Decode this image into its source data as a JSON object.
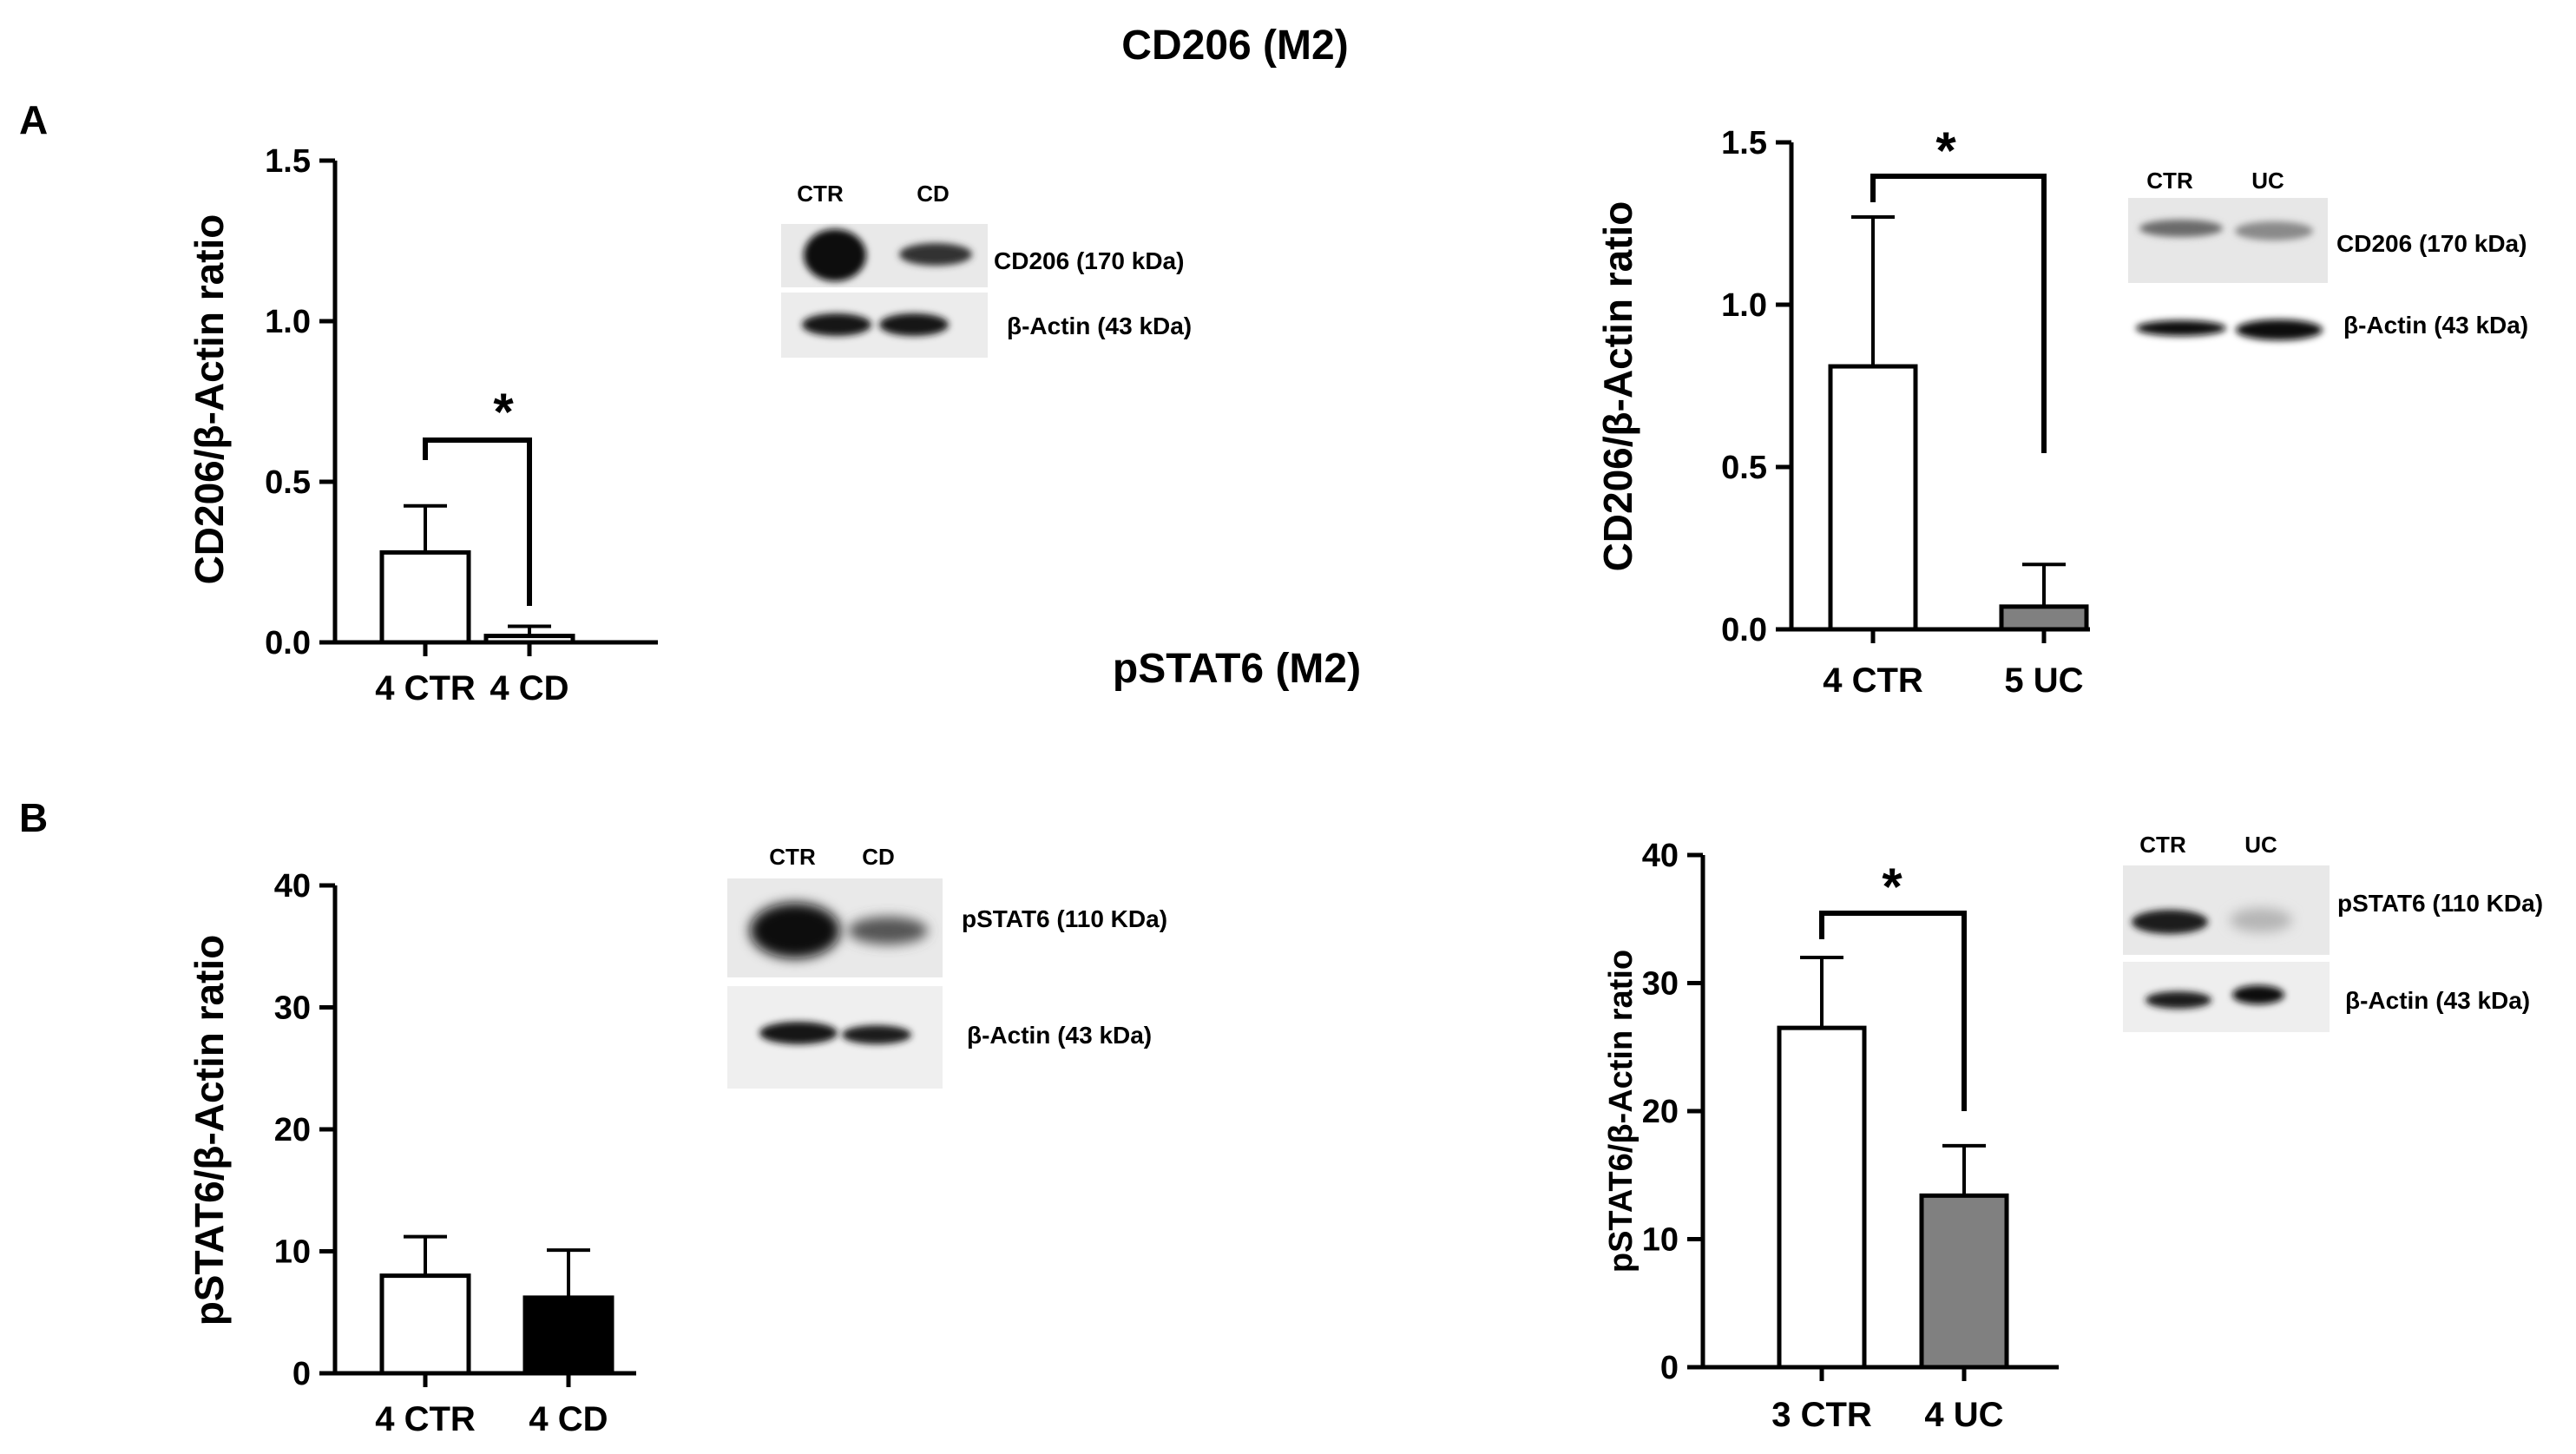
{
  "figure": {
    "title_top": "CD206 (M2)",
    "title_mid": "pSTAT6 (M2)",
    "panel_a": "A",
    "panel_b": "B"
  },
  "chart_data": [
    {
      "type": "bar",
      "id": "a-left",
      "categories": [
        "4 CTR",
        "4 CD"
      ],
      "values": [
        0.28,
        0.02
      ],
      "errors": [
        0.145,
        0.03
      ],
      "colors": [
        "#ffffff",
        "#ffffff"
      ],
      "ylabel": "CD206/β-Actin ratio",
      "ylim": [
        0,
        1.5
      ],
      "yticks": [
        0,
        0.5,
        1.0,
        1.5
      ],
      "ytick_labels": [
        "0.0",
        "0.5",
        "1.0",
        "1.5"
      ],
      "significance": "*"
    },
    {
      "type": "bar",
      "id": "a-right",
      "categories": [
        "4 CTR",
        "5 UC"
      ],
      "values": [
        0.81,
        0.07
      ],
      "errors": [
        0.46,
        0.13
      ],
      "colors": [
        "#ffffff",
        "#808080"
      ],
      "ylabel": "CD206/β-Actin ratio",
      "ylim": [
        0,
        1.5
      ],
      "yticks": [
        0,
        0.5,
        1.0,
        1.5
      ],
      "ytick_labels": [
        "0.0",
        "0.5",
        "1.0",
        "1.5"
      ],
      "significance": "*"
    },
    {
      "type": "bar",
      "id": "b-left",
      "categories": [
        "4 CTR",
        "4 CD"
      ],
      "values": [
        8.0,
        6.2
      ],
      "errors": [
        3.2,
        3.9
      ],
      "colors": [
        "#ffffff",
        "#000000"
      ],
      "ylabel": "pSTAT6/β-Actin ratio",
      "ylim": [
        0,
        40
      ],
      "yticks": [
        0,
        10,
        20,
        30,
        40
      ],
      "ytick_labels": [
        "0",
        "10",
        "20",
        "30",
        "40"
      ],
      "significance": ""
    },
    {
      "type": "bar",
      "id": "b-right",
      "categories": [
        "3 CTR",
        "4 UC"
      ],
      "values": [
        26.5,
        13.4
      ],
      "errors": [
        5.5,
        3.9
      ],
      "colors": [
        "#ffffff",
        "#808080"
      ],
      "ylabel": "pSTAT6/β-Actin ratio",
      "ylim": [
        0,
        40
      ],
      "yticks": [
        0,
        10,
        20,
        30,
        40
      ],
      "ytick_labels": [
        "0",
        "10",
        "20",
        "30",
        "40"
      ],
      "significance": "*"
    }
  ],
  "blots": [
    {
      "id": "a-left",
      "lanes": [
        "CTR",
        "CD"
      ],
      "bands": [
        "CD206 (170 kDa)",
        "β-Actin (43 kDa)"
      ]
    },
    {
      "id": "a-right",
      "lanes": [
        "CTR",
        "UC"
      ],
      "bands": [
        "CD206 (170 kDa)",
        "β-Actin (43 kDa)"
      ]
    },
    {
      "id": "b-left",
      "lanes": [
        "CTR",
        "CD"
      ],
      "bands": [
        "pSTAT6 (110 KDa)",
        "β-Actin (43 kDa)"
      ]
    },
    {
      "id": "b-right",
      "lanes": [
        "CTR",
        "UC"
      ],
      "bands": [
        "pSTAT6 (110 KDa)",
        "β-Actin (43 kDa)"
      ]
    }
  ]
}
